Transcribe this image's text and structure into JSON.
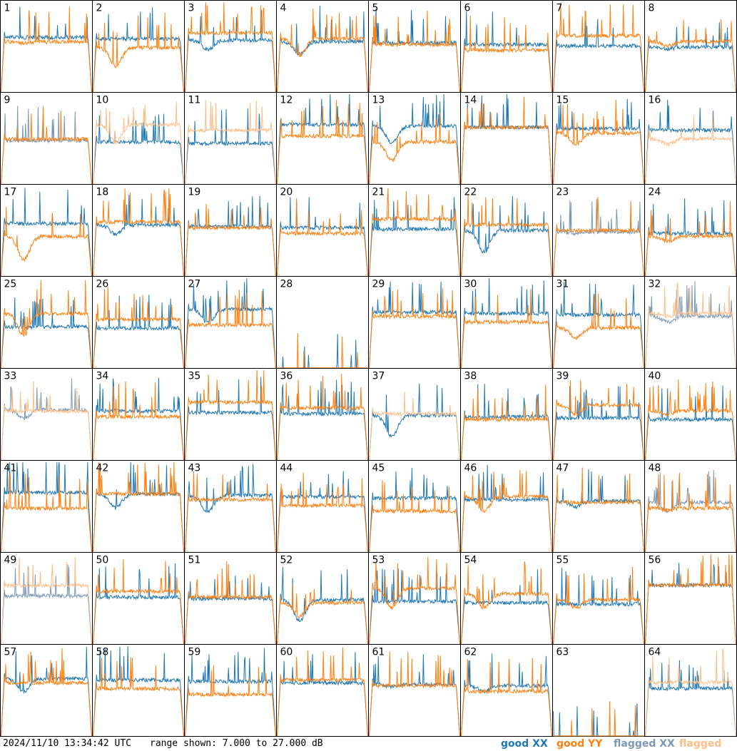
{
  "footer": {
    "timestamp": "2024/11/10 13:34:42 UTC",
    "range_text": "range shown: 7.000 to 27.000 dB"
  },
  "legend": {
    "good_xx": "good XX",
    "good_yy": "good YY",
    "flagged_xx": "flagged XX",
    "flagged_yy": "flagged YY"
  },
  "colors": {
    "good_xx": "#1f77b4",
    "good_yy": "#ff7f0e",
    "flagged_xx": "#7c99b4",
    "flagged_yy": "#ffbe86",
    "border": "#000000"
  },
  "chart_data": {
    "type": "line",
    "layout": "8x8 small multiples",
    "ylim": [
      7,
      27
    ],
    "y_unit": "dB",
    "panels": [
      {
        "label": "1",
        "xx": "good",
        "yy": "good"
      },
      {
        "label": "2",
        "xx": "good",
        "yy": "good"
      },
      {
        "label": "3",
        "xx": "good",
        "yy": "good"
      },
      {
        "label": "4",
        "xx": "good",
        "yy": "good"
      },
      {
        "label": "5",
        "xx": "good",
        "yy": "good"
      },
      {
        "label": "6",
        "xx": "good",
        "yy": "good"
      },
      {
        "label": "7",
        "xx": "good",
        "yy": "good"
      },
      {
        "label": "8",
        "xx": "good",
        "yy": "good"
      },
      {
        "label": "9",
        "xx": "flagged",
        "yy": "good"
      },
      {
        "label": "10",
        "xx": "good",
        "yy": "flagged"
      },
      {
        "label": "11",
        "xx": "good",
        "yy": "flagged"
      },
      {
        "label": "12",
        "xx": "good",
        "yy": "good"
      },
      {
        "label": "13",
        "xx": "good",
        "yy": "good"
      },
      {
        "label": "14",
        "xx": "good",
        "yy": "good"
      },
      {
        "label": "15",
        "xx": "good",
        "yy": "good"
      },
      {
        "label": "16",
        "xx": "good",
        "yy": "flagged"
      },
      {
        "label": "17",
        "xx": "good",
        "yy": "good"
      },
      {
        "label": "18",
        "xx": "good",
        "yy": "good"
      },
      {
        "label": "19",
        "xx": "good",
        "yy": "good"
      },
      {
        "label": "20",
        "xx": "good",
        "yy": "good"
      },
      {
        "label": "21",
        "xx": "good",
        "yy": "good"
      },
      {
        "label": "22",
        "xx": "good",
        "yy": "good"
      },
      {
        "label": "23",
        "xx": "flagged",
        "yy": "good"
      },
      {
        "label": "24",
        "xx": "good",
        "yy": "good"
      },
      {
        "label": "25",
        "xx": "good",
        "yy": "good"
      },
      {
        "label": "26",
        "xx": "good",
        "yy": "good"
      },
      {
        "label": "27",
        "xx": "good",
        "yy": "good"
      },
      {
        "label": "28",
        "xx": "good",
        "yy": "good"
      },
      {
        "label": "29",
        "xx": "good",
        "yy": "good"
      },
      {
        "label": "30",
        "xx": "good",
        "yy": "good"
      },
      {
        "label": "31",
        "xx": "good",
        "yy": "good"
      },
      {
        "label": "32",
        "xx": "flagged",
        "yy": "flagged"
      },
      {
        "label": "33",
        "xx": "flagged",
        "yy": "flagged"
      },
      {
        "label": "34",
        "xx": "good",
        "yy": "good"
      },
      {
        "label": "35",
        "xx": "good",
        "yy": "good"
      },
      {
        "label": "36",
        "xx": "good",
        "yy": "good"
      },
      {
        "label": "37",
        "xx": "good",
        "yy": "flagged"
      },
      {
        "label": "38",
        "xx": "good",
        "yy": "good"
      },
      {
        "label": "39",
        "xx": "good",
        "yy": "good"
      },
      {
        "label": "40",
        "xx": "good",
        "yy": "good"
      },
      {
        "label": "41",
        "xx": "good",
        "yy": "good"
      },
      {
        "label": "42",
        "xx": "good",
        "yy": "good"
      },
      {
        "label": "43",
        "xx": "good",
        "yy": "good"
      },
      {
        "label": "44",
        "xx": "good",
        "yy": "good"
      },
      {
        "label": "45",
        "xx": "good",
        "yy": "good"
      },
      {
        "label": "46",
        "xx": "good",
        "yy": "good"
      },
      {
        "label": "47",
        "xx": "good",
        "yy": "good"
      },
      {
        "label": "48",
        "xx": "flagged",
        "yy": "good"
      },
      {
        "label": "49",
        "xx": "flagged",
        "yy": "flagged"
      },
      {
        "label": "50",
        "xx": "good",
        "yy": "good"
      },
      {
        "label": "51",
        "xx": "good",
        "yy": "good"
      },
      {
        "label": "52",
        "xx": "good",
        "yy": "good"
      },
      {
        "label": "53",
        "xx": "good",
        "yy": "good"
      },
      {
        "label": "54",
        "xx": "good",
        "yy": "good"
      },
      {
        "label": "55",
        "xx": "good",
        "yy": "good"
      },
      {
        "label": "56",
        "xx": "good",
        "yy": "good"
      },
      {
        "label": "57",
        "xx": "good",
        "yy": "good"
      },
      {
        "label": "58",
        "xx": "good",
        "yy": "good"
      },
      {
        "label": "59",
        "xx": "good",
        "yy": "good"
      },
      {
        "label": "60",
        "xx": "good",
        "yy": "good"
      },
      {
        "label": "61",
        "xx": "good",
        "yy": "good"
      },
      {
        "label": "62",
        "xx": "good",
        "yy": "good"
      },
      {
        "label": "63",
        "xx": "good",
        "yy": "good"
      },
      {
        "label": "64",
        "xx": "good",
        "yy": "flagged"
      }
    ]
  }
}
